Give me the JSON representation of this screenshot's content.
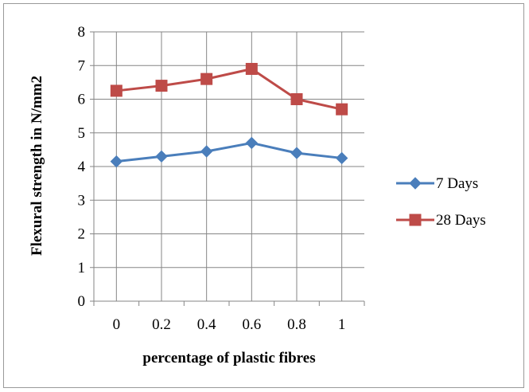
{
  "chart_data": {
    "type": "line",
    "title": "",
    "xlabel": "percentage of plastic fibres",
    "ylabel": "Flexural strength  in N/mm2",
    "x": [
      "0",
      "0.2",
      "0.4",
      "0.6",
      "0.8",
      "1"
    ],
    "ylim": [
      0,
      8
    ],
    "yticks": [
      "0",
      "1",
      "2",
      "3",
      "4",
      "5",
      "6",
      "7",
      "8"
    ],
    "grid": "vertical and horizontal major gridlines",
    "legend_position": "right",
    "series": [
      {
        "name": "7 Days",
        "values": [
          4.15,
          4.3,
          4.45,
          4.7,
          4.4,
          4.25
        ],
        "color": "#4a7ebb",
        "marker": "diamond"
      },
      {
        "name": "28 Days",
        "values": [
          6.25,
          6.4,
          6.6,
          6.9,
          6.0,
          5.7
        ],
        "color": "#be4b48",
        "marker": "square"
      }
    ]
  }
}
